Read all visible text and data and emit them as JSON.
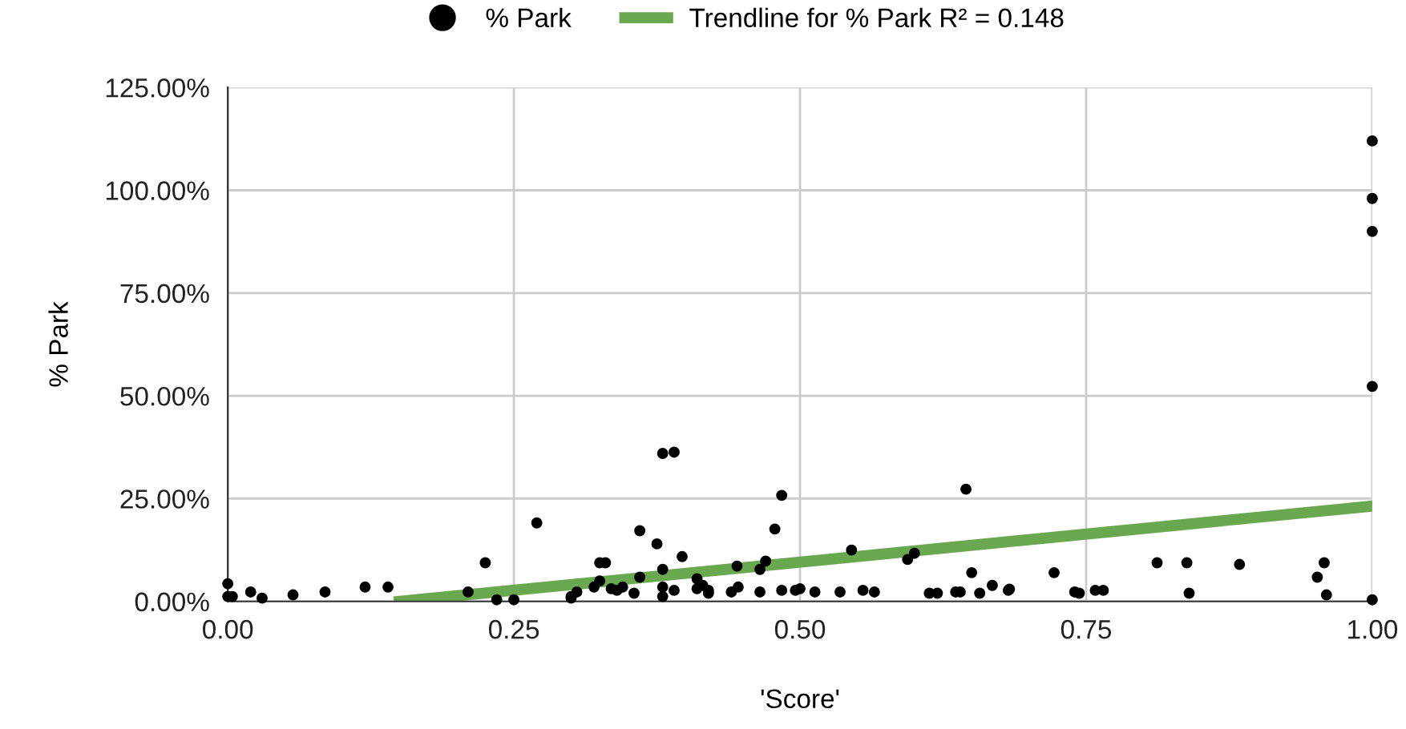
{
  "chart_data": {
    "type": "scatter",
    "xlabel": "'Score'",
    "ylabel": "% Park",
    "legend": "top",
    "grid": true,
    "xlim": [
      0,
      1
    ],
    "xticks": [
      {
        "value": 0,
        "label": "0.00"
      },
      {
        "value": 0.25,
        "label": "0.25"
      },
      {
        "value": 0.5,
        "label": "0.50"
      },
      {
        "value": 0.75,
        "label": "0.75"
      },
      {
        "value": 1,
        "label": "1.00"
      }
    ],
    "ylim": [
      0,
      125
    ],
    "yticks": [
      {
        "value": 0,
        "label": "0.00%"
      },
      {
        "value": 25,
        "label": "25.00%"
      },
      {
        "value": 50,
        "label": "50.00%"
      },
      {
        "value": 75,
        "label": "75.00%"
      },
      {
        "value": 100,
        "label": "100.00%"
      },
      {
        "value": 125,
        "label": "125.00%"
      }
    ],
    "series": [
      {
        "name": "% Park",
        "marker": "circle",
        "color": "#000000",
        "x": [
          0,
          0,
          0.004,
          0.02,
          0.03,
          0.057,
          0.085,
          0.12,
          0.14,
          0.21,
          0.225,
          0.235,
          0.25,
          0.27,
          0.3,
          0.3,
          0.305,
          0.32,
          0.325,
          0.33,
          0.325,
          0.335,
          0.34,
          0.345,
          0.355,
          0.36,
          0.36,
          0.38,
          0.375,
          0.38,
          0.38,
          0.38,
          0.39,
          0.39,
          0.397,
          0.41,
          0.41,
          0.415,
          0.42,
          0.42,
          0.44,
          0.445,
          0.446,
          0.465,
          0.465,
          0.47,
          0.478,
          0.484,
          0.484,
          0.496,
          0.5,
          0.513,
          0.535,
          0.545,
          0.555,
          0.565,
          0.594,
          0.6,
          0.613,
          0.62,
          0.636,
          0.64,
          0.645,
          0.65,
          0.657,
          0.668,
          0.682,
          0.683,
          0.722,
          0.74,
          0.744,
          0.758,
          0.765,
          0.812,
          0.838,
          0.84,
          0.884,
          0.952,
          0.958,
          0.96,
          1,
          1,
          1,
          1,
          1
        ],
        "values": [
          4.3,
          1.2,
          1.2,
          2.3,
          0.8,
          1.6,
          2.3,
          3.5,
          3.5,
          2.3,
          9.4,
          0.4,
          0.4,
          19.1,
          1.2,
          0.8,
          2.3,
          3.5,
          9.4,
          9.4,
          5,
          3.1,
          2.7,
          3.5,
          2,
          5.9,
          17.2,
          36,
          14,
          7.8,
          3.5,
          1.2,
          2.7,
          36.3,
          10.9,
          3.1,
          5.5,
          3.9,
          2.7,
          2,
          2.3,
          8.6,
          3.5,
          7.8,
          2.3,
          9.8,
          17.6,
          25.8,
          2.7,
          2.7,
          3.1,
          2.3,
          2.3,
          12.5,
          2.7,
          2.3,
          10.2,
          11.7,
          2,
          2,
          2.3,
          2.3,
          27.3,
          7,
          2,
          3.9,
          2.7,
          3,
          7,
          2.3,
          2,
          2.7,
          2.7,
          9.4,
          9.4,
          2,
          9,
          5.9,
          9.4,
          1.6,
          112,
          98,
          90,
          52.3,
          0.4
        ]
      },
      {
        "name": "Trendline for % Park R² = 0.148",
        "type": "line",
        "marker": "none",
        "color": "#6aa84f",
        "x": [
          0.15,
          1
        ],
        "values": [
          0,
          23.2
        ]
      }
    ]
  }
}
